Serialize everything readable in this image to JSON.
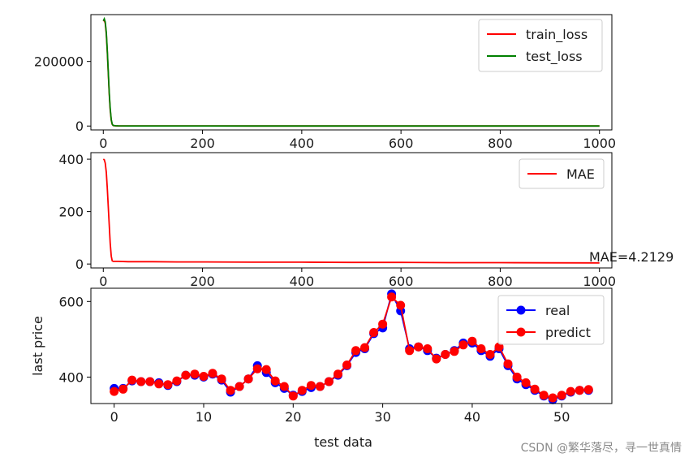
{
  "chart_data": [
    {
      "type": "line",
      "title": "",
      "xlabel": "",
      "ylabel": "",
      "xlim": [
        -25,
        1025
      ],
      "ylim": [
        -12000,
        345000
      ],
      "xticks": [
        0,
        200,
        400,
        600,
        800,
        1000
      ],
      "yticks": [
        0,
        200000
      ],
      "grid": false,
      "legend_position": "top-right",
      "series": [
        {
          "name": "train_loss",
          "color": "#ff0000",
          "x": [
            0,
            2,
            4,
            6,
            8,
            10,
            12,
            14,
            16,
            18,
            20,
            25,
            30,
            50,
            100,
            200,
            300,
            400,
            500,
            600,
            700,
            800,
            900,
            1000
          ],
          "y": [
            325000,
            328000,
            318000,
            285000,
            230000,
            165000,
            100000,
            50000,
            18000,
            5000,
            1500,
            600,
            400,
            300,
            250,
            200,
            180,
            160,
            150,
            140,
            130,
            120,
            110,
            100
          ]
        },
        {
          "name": "test_loss",
          "color": "#008000",
          "x": [
            0,
            2,
            4,
            6,
            8,
            10,
            12,
            14,
            16,
            18,
            20,
            25,
            30,
            50,
            100,
            200,
            300,
            400,
            500,
            600,
            700,
            800,
            900,
            1000
          ],
          "y": [
            326000,
            332000,
            322000,
            290000,
            235000,
            170000,
            105000,
            55000,
            20000,
            6000,
            1800,
            700,
            450,
            320,
            260,
            210,
            190,
            170,
            155,
            145,
            135,
            125,
            115,
            105
          ]
        }
      ]
    },
    {
      "type": "line",
      "title": "",
      "xlabel": "",
      "ylabel": "",
      "xlim": [
        -25,
        1025
      ],
      "ylim": [
        -15,
        425
      ],
      "xticks": [
        0,
        200,
        400,
        600,
        800,
        1000
      ],
      "yticks": [
        0,
        200,
        400
      ],
      "grid": false,
      "legend_position": "top-right",
      "annotation": "MAE=4.2129",
      "series": [
        {
          "name": "MAE",
          "color": "#ff0000",
          "x": [
            0,
            2,
            4,
            6,
            8,
            10,
            12,
            14,
            16,
            18,
            20,
            25,
            30,
            50,
            100,
            150,
            200,
            300,
            400,
            500,
            600,
            700,
            800,
            900,
            1000
          ],
          "y": [
            400,
            398,
            385,
            350,
            290,
            220,
            150,
            80,
            30,
            12,
            10,
            10,
            10,
            9,
            9,
            8,
            8,
            7,
            7,
            6,
            6,
            5,
            5,
            4.5,
            4.2
          ]
        }
      ]
    },
    {
      "type": "line",
      "title": "",
      "xlabel": "test data",
      "ylabel": "last price",
      "xlim": [
        -2.6,
        55.6
      ],
      "ylim": [
        330,
        635
      ],
      "xticks": [
        0,
        10,
        20,
        30,
        40,
        50
      ],
      "yticks": [
        400,
        600
      ],
      "grid": false,
      "legend_position": "top-right",
      "series": [
        {
          "name": "real",
          "color": "#0000ff",
          "marker": "circle",
          "x": [
            0,
            1,
            2,
            3,
            4,
            5,
            6,
            7,
            8,
            9,
            10,
            11,
            12,
            13,
            14,
            15,
            16,
            17,
            18,
            19,
            20,
            21,
            22,
            23,
            24,
            25,
            26,
            27,
            28,
            29,
            30,
            31,
            32,
            33,
            34,
            35,
            36,
            37,
            38,
            39,
            40,
            41,
            42,
            43,
            44,
            45,
            46,
            47,
            48,
            49,
            50,
            51,
            52,
            53
          ],
          "y": [
            370,
            370,
            390,
            388,
            388,
            385,
            378,
            388,
            405,
            405,
            400,
            408,
            392,
            360,
            375,
            395,
            430,
            412,
            385,
            370,
            352,
            362,
            372,
            375,
            388,
            405,
            430,
            465,
            475,
            515,
            530,
            620,
            575,
            475,
            480,
            470,
            450,
            460,
            470,
            490,
            490,
            470,
            455,
            475,
            430,
            395,
            380,
            365,
            350,
            340,
            350,
            360,
            365,
            365
          ]
        },
        {
          "name": "predict",
          "color": "#ff0000",
          "marker": "circle",
          "x": [
            0,
            1,
            2,
            3,
            4,
            5,
            6,
            7,
            8,
            9,
            10,
            11,
            12,
            13,
            14,
            15,
            16,
            17,
            18,
            19,
            20,
            21,
            22,
            23,
            24,
            25,
            26,
            27,
            28,
            29,
            30,
            31,
            32,
            33,
            34,
            35,
            36,
            37,
            38,
            39,
            40,
            41,
            42,
            43,
            44,
            45,
            46,
            47,
            48,
            49,
            50,
            51,
            52,
            53
          ],
          "y": [
            362,
            368,
            392,
            388,
            388,
            382,
            380,
            390,
            405,
            408,
            402,
            410,
            395,
            365,
            375,
            395,
            422,
            420,
            390,
            375,
            350,
            365,
            378,
            375,
            388,
            408,
            432,
            470,
            478,
            518,
            540,
            612,
            590,
            470,
            480,
            475,
            448,
            460,
            468,
            485,
            495,
            475,
            460,
            480,
            435,
            400,
            385,
            368,
            352,
            345,
            352,
            362,
            365,
            367
          ]
        }
      ]
    }
  ],
  "watermark": "CSDN @繁华落尽，寻一世真情"
}
